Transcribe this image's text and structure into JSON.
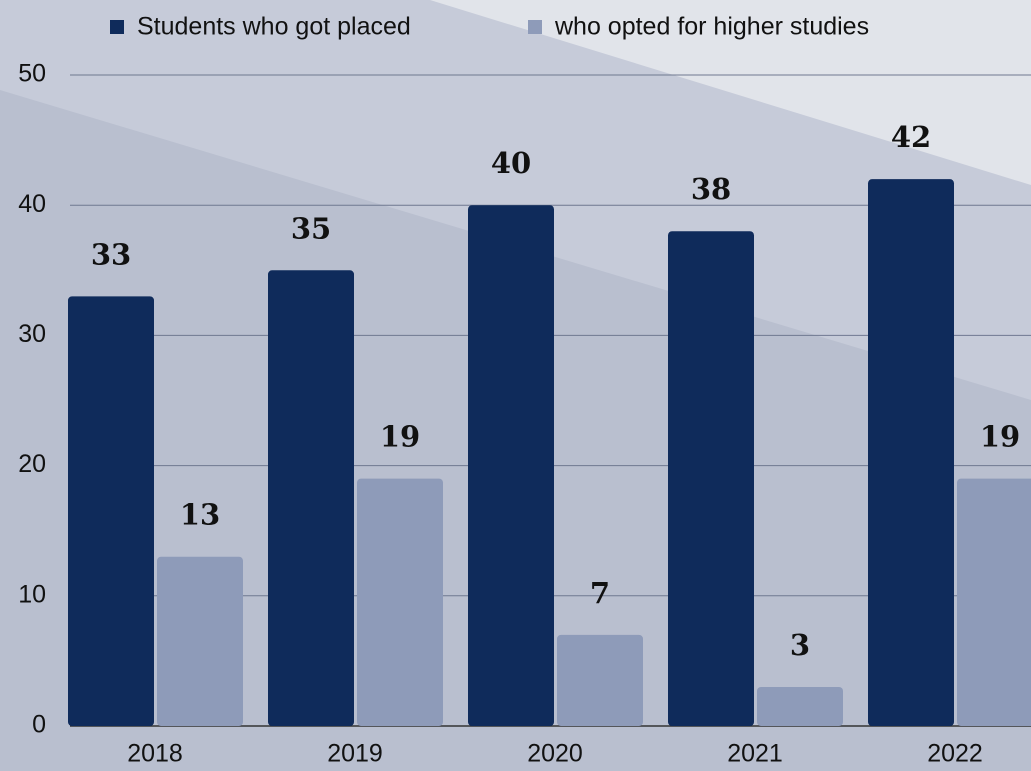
{
  "chart_data": {
    "type": "bar",
    "categories": [
      "2018",
      "2019",
      "2020",
      "2021",
      "2022"
    ],
    "series": [
      {
        "name": "Students who got placed",
        "color": "#0f2b5b",
        "values": [
          33,
          35,
          40,
          38,
          42
        ]
      },
      {
        "name": "who opted for higher studies",
        "color": "#8e9bb9",
        "values": [
          13,
          19,
          7,
          3,
          19
        ]
      }
    ],
    "ylim": [
      0,
      50
    ],
    "yticks": [
      0,
      10,
      20,
      30,
      40,
      50
    ],
    "grid": true,
    "legend": "top"
  }
}
